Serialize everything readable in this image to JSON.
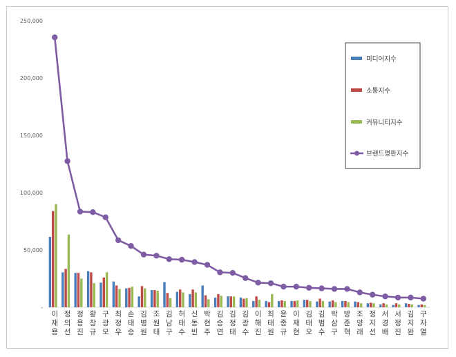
{
  "chart_data": {
    "type": "bar",
    "title": "",
    "xlabel": "",
    "ylabel": "",
    "ylim": [
      0,
      250000
    ],
    "y_ticks": [
      0,
      50000,
      100000,
      150000,
      200000,
      250000
    ],
    "y_tick_labels": [
      "-",
      "50,000",
      "100,000",
      "150,000",
      "200,000",
      "250,000"
    ],
    "legend_position": "top-right",
    "categories": [
      "이재용",
      "정의선",
      "정용진",
      "황창규",
      "구광모",
      "최정우",
      "손태승",
      "김병원",
      "조원태",
      "김남구",
      "허태수",
      "신동빈",
      "박현주",
      "김승연",
      "김정태",
      "김광수",
      "이해진",
      "최태원",
      "윤종규",
      "이재현",
      "김태오",
      "김범수",
      "박삼구",
      "방준혁",
      "조양래",
      "정지선",
      "서경배",
      "서정진",
      "김지완",
      "구자열"
    ],
    "series": [
      {
        "name": "미디어지수",
        "kind": "bar",
        "color": "#4a7ebb",
        "values": [
          61500,
          30500,
          30000,
          31500,
          21500,
          22500,
          16500,
          9500,
          15000,
          22000,
          13500,
          11500,
          19000,
          8500,
          9500,
          8500,
          5500,
          5500,
          5500,
          5500,
          6500,
          5000,
          5000,
          5500,
          5000,
          3500,
          2500,
          2000,
          3500,
          2000
        ]
      },
      {
        "name": "소통지수",
        "kind": "bar",
        "color": "#be4b48",
        "values": [
          84000,
          33500,
          30000,
          30500,
          26000,
          19000,
          17000,
          18500,
          15000,
          12500,
          15500,
          15500,
          10500,
          11500,
          9500,
          7500,
          9500,
          4500,
          6000,
          5500,
          6500,
          7500,
          6000,
          5500,
          4500,
          4000,
          3500,
          3500,
          3000,
          2500
        ]
      },
      {
        "name": "커뮤니티지수",
        "kind": "bar",
        "color": "#98b954",
        "values": [
          90000,
          63500,
          25000,
          21000,
          30500,
          16000,
          18000,
          16500,
          14500,
          8000,
          13000,
          13000,
          7000,
          10000,
          9500,
          8000,
          6500,
          11500,
          5500,
          6000,
          5500,
          5500,
          4500,
          4500,
          3500,
          3500,
          2500,
          2500,
          2500,
          2000
        ]
      },
      {
        "name": "브랜드평판지수",
        "kind": "line",
        "color": "#7e5ca3",
        "values": [
          235500,
          127500,
          83500,
          83000,
          78500,
          58500,
          53500,
          46000,
          45000,
          42000,
          41500,
          39500,
          37000,
          30500,
          30000,
          25500,
          21500,
          21000,
          18000,
          18000,
          17000,
          16500,
          16000,
          16000,
          13000,
          11000,
          9500,
          8500,
          8500,
          7500
        ]
      }
    ]
  }
}
